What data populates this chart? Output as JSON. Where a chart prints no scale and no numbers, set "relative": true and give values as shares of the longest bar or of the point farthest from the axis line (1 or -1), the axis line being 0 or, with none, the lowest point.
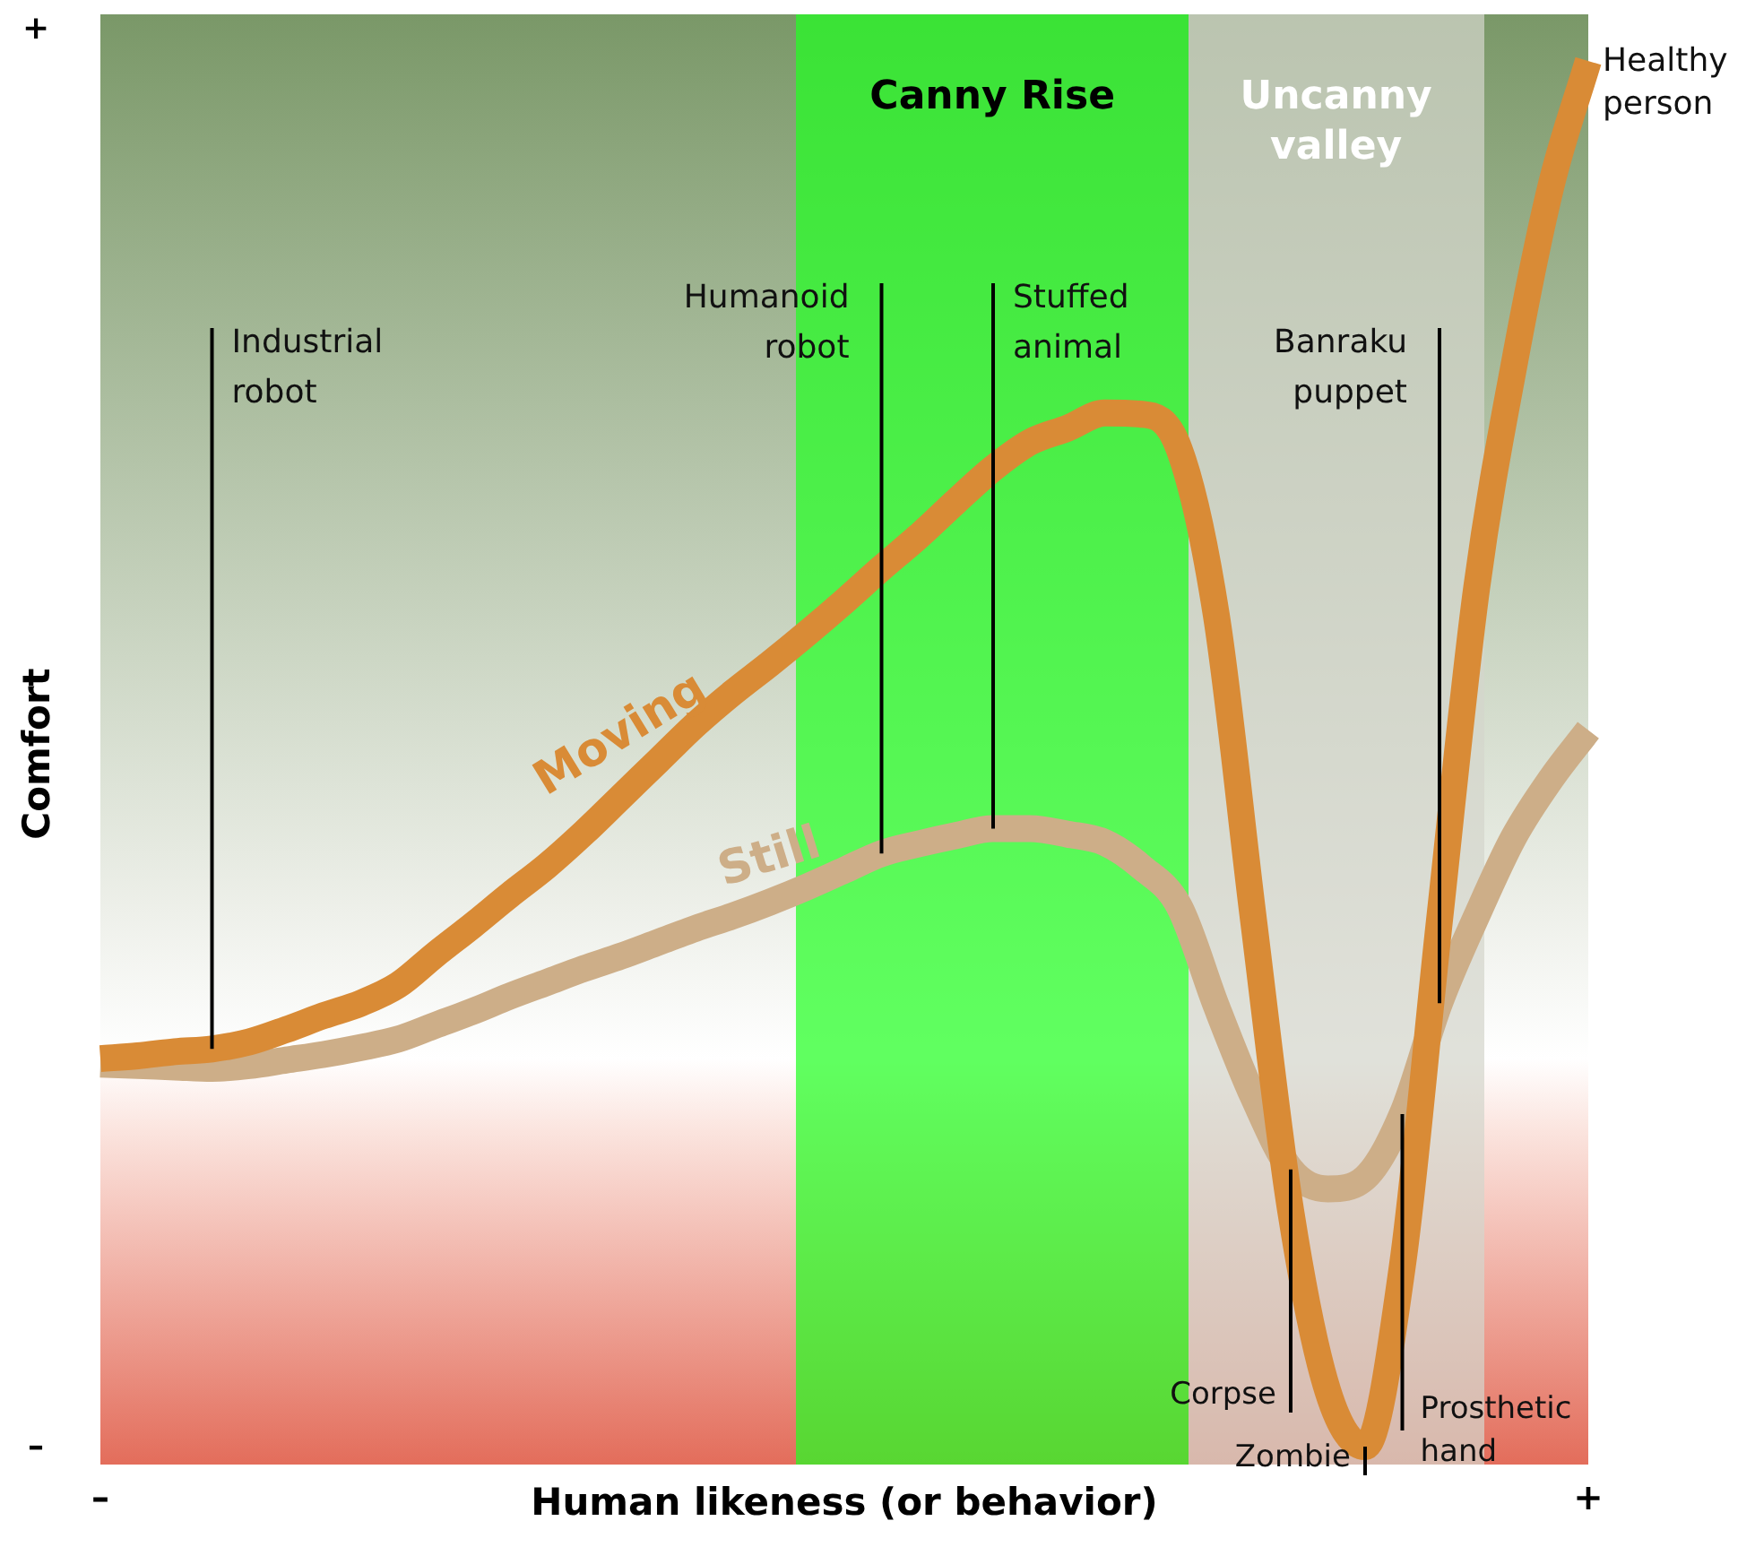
{
  "chart_data": {
    "type": "line",
    "relative": true,
    "xlabel": "Human likeness (or behavior)",
    "ylabel": "Comfort",
    "categories": [
      null,
      null,
      null,
      null,
      null,
      null,
      null,
      null,
      null,
      null,
      null,
      null,
      null,
      null,
      null,
      null,
      null,
      null,
      null,
      null,
      null,
      null,
      null,
      null,
      null,
      null,
      null,
      null,
      null,
      null,
      null,
      null,
      null,
      null,
      null,
      null,
      null,
      null,
      null,
      null,
      null
    ],
    "legend": false,
    "marker": "none",
    "line_style": "solid",
    "series": [
      {
        "name": "Moving",
        "color": "#d98b36",
        "values": [
          0.28,
          0.282,
          0.285,
          0.287,
          0.292,
          0.301,
          0.311,
          0.32,
          0.333,
          0.355,
          0.376,
          0.398,
          0.419,
          0.443,
          0.469,
          0.495,
          0.521,
          0.544,
          0.565,
          0.587,
          0.61,
          0.634,
          0.657,
          0.682,
          0.706,
          0.725,
          0.735,
          0.746,
          0.745,
          0.72,
          0.6,
          0.38,
          0.17,
          0.04,
          0,
          0.13,
          0.38,
          0.62,
          0.78,
          0.91,
          1.0
        ]
      },
      {
        "name": "Still",
        "color": "#cdae88",
        "values": [
          0.276,
          0.275,
          0.274,
          0.273,
          0.275,
          0.279,
          0.283,
          0.288,
          0.294,
          0.304,
          0.314,
          0.325,
          0.335,
          0.345,
          0.354,
          0.364,
          0.374,
          0.383,
          0.393,
          0.404,
          0.416,
          0.428,
          0.435,
          0.441,
          0.446,
          0.446,
          0.442,
          0.436,
          0.418,
          0.39,
          0.318,
          0.252,
          0.2,
          0.186,
          0.194,
          0.24,
          0.32,
          0.383,
          0.44,
          0.482,
          0.517
        ]
      }
    ],
    "annotations": [
      "+",
      "–",
      "–",
      "+",
      "Canny Rise",
      "Uncanny valley",
      "Industrial robot",
      "Humanoid robot",
      "Stuffed animal",
      "Banraku puppet",
      "Corpse",
      "Zombie",
      "Prosthetic hand",
      "Healthy person"
    ]
  }
}
